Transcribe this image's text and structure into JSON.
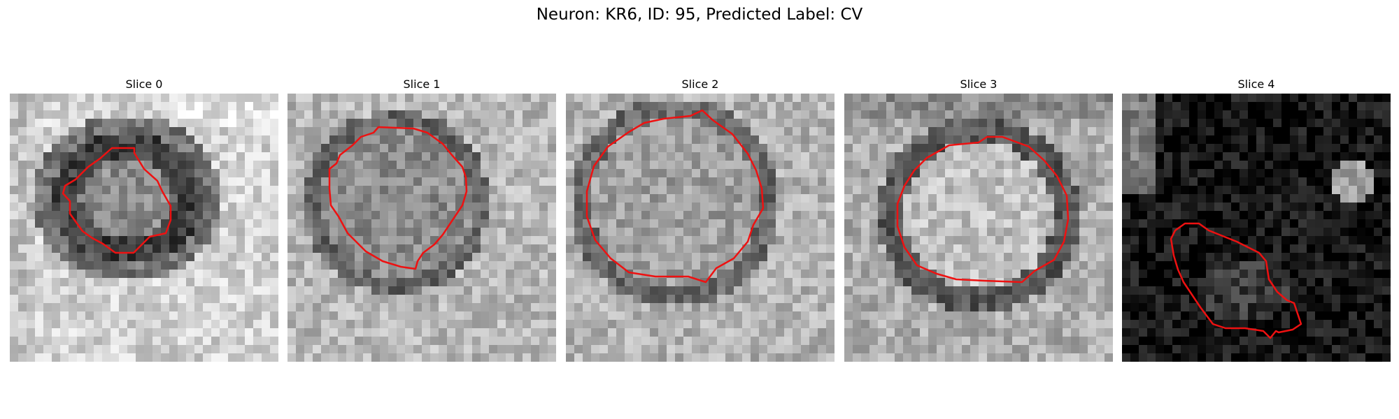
{
  "figure": {
    "title": "Neuron: KR6, ID: 95, Predicted Label: CV"
  },
  "panels": [
    {
      "title": "Slice 0",
      "contour_color": "#ee1111"
    },
    {
      "title": "Slice 1",
      "contour_color": "#ee1111"
    },
    {
      "title": "Slice 2",
      "contour_color": "#ee1111"
    },
    {
      "title": "Slice 3",
      "contour_color": "#ee1111"
    },
    {
      "title": "Slice 4",
      "contour_color": "#ee1111"
    }
  ]
}
